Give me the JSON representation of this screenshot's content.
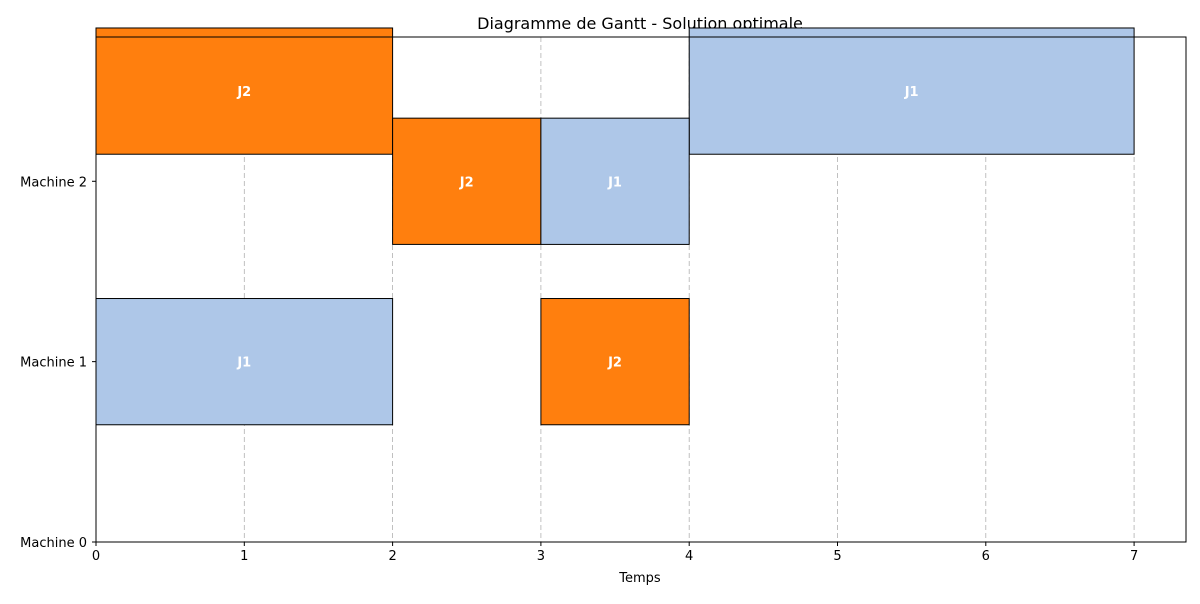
{
  "chart_data": {
    "type": "bar",
    "orientation": "horizontal",
    "title": "Diagramme de Gantt - Solution optimale",
    "xlabel": "Temps",
    "ylabel": "",
    "xlim": [
      0,
      7.35
    ],
    "ylim": [
      0,
      2.8
    ],
    "x_ticks": [
      0,
      1,
      2,
      3,
      4,
      5,
      6,
      7
    ],
    "y_ticks": [
      {
        "value": 0,
        "label": "Machine 0"
      },
      {
        "value": 1,
        "label": "Machine 1"
      },
      {
        "value": 2,
        "label": "Machine 2"
      }
    ],
    "grid": "x-only-dashed",
    "legend": "none",
    "bar_height": 0.7,
    "colors": {
      "J1": "#aec7e8",
      "J2": "#ff7f0e",
      "edge": "#000000",
      "label": "#ffffff"
    },
    "tasks": [
      {
        "job": "J2",
        "row": 2.5,
        "start": 0,
        "duration": 2
      },
      {
        "job": "J1",
        "row": 2.5,
        "start": 4,
        "duration": 3
      },
      {
        "job": "J2",
        "row": 2,
        "start": 2,
        "duration": 1
      },
      {
        "job": "J1",
        "row": 2,
        "start": 3,
        "duration": 1
      },
      {
        "job": "J1",
        "row": 1,
        "start": 0,
        "duration": 2
      },
      {
        "job": "J2",
        "row": 1,
        "start": 3,
        "duration": 1
      }
    ]
  }
}
